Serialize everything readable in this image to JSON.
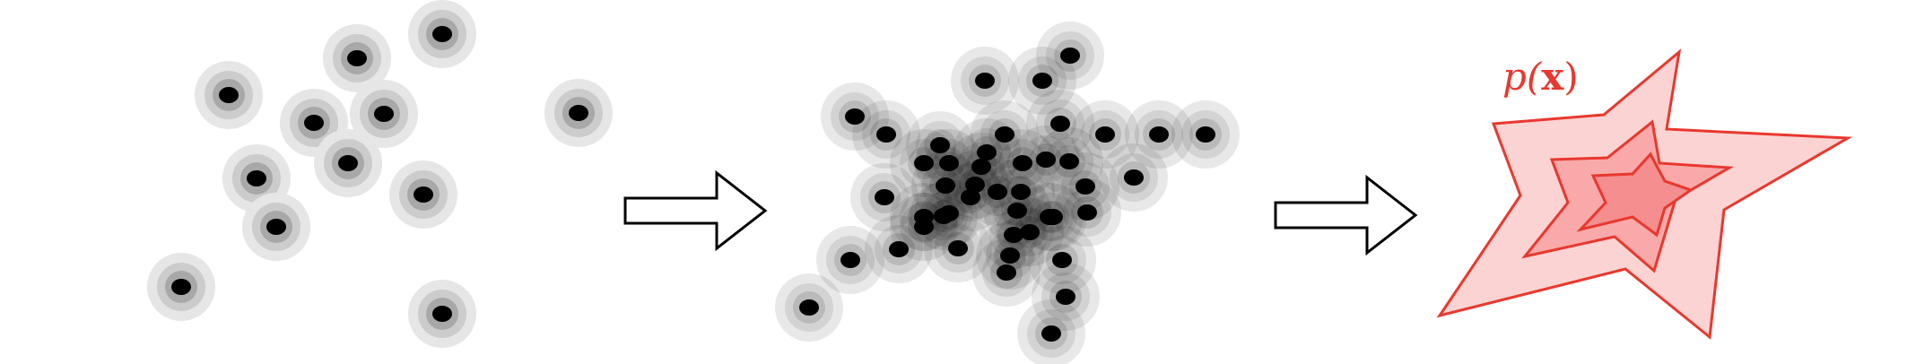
{
  "colors": {
    "point": "#000000",
    "halo_outer": "#e6e6e6",
    "halo_mid": "#cccccc",
    "halo_inner": "#a8a8a8",
    "arrow_stroke": "#000000",
    "arrow_fill": "#ffffff",
    "density_stroke": "#e8382e",
    "density_outer": "#fcd3d3",
    "density_mid": "#f9a9a9",
    "density_inner": "#f58e8e",
    "label": "#e8382e"
  },
  "panels": {
    "samples": {
      "name": "sparse-samples-with-gaussian-kernels",
      "point_count": 12
    },
    "kde": {
      "name": "kernel-density-superposition",
      "point_count": 45
    },
    "density": {
      "label_prefix": "p(",
      "label_var": "x",
      "label_suffix": ")",
      "level_count": 3
    }
  },
  "arrows": [
    {
      "name": "arrow-right-icon"
    },
    {
      "name": "arrow-right-icon"
    }
  ]
}
